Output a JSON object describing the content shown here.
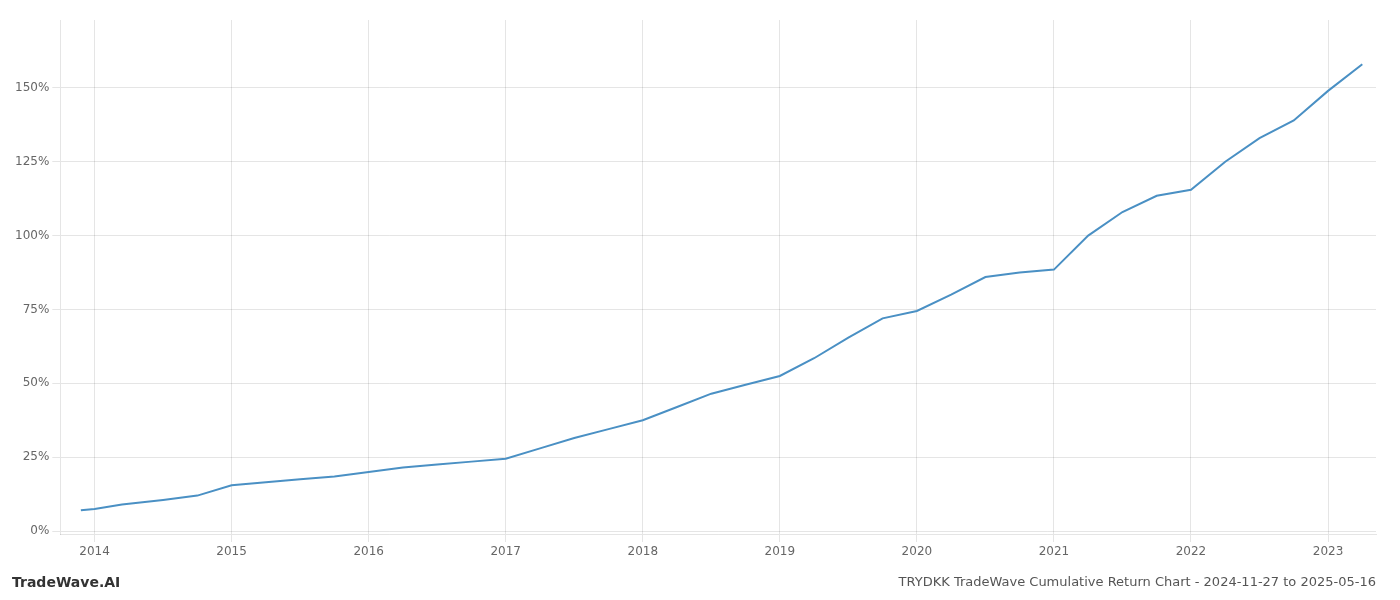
{
  "chart_data": {
    "type": "line",
    "title": "TRYDKK TradeWave Cumulative Return Chart - 2024-11-27 to 2025-05-16",
    "annotations": [
      "TradeWave.AI"
    ],
    "x": [
      2013.9,
      2014.0,
      2014.2,
      2014.5,
      2014.75,
      2015.0,
      2015.25,
      2015.5,
      2015.75,
      2016.0,
      2016.25,
      2016.5,
      2016.75,
      2017.0,
      2017.25,
      2017.5,
      2017.75,
      2018.0,
      2018.25,
      2018.5,
      2018.75,
      2019.0,
      2019.25,
      2019.5,
      2019.75,
      2020.0,
      2020.25,
      2020.5,
      2020.75,
      2021.0,
      2021.25,
      2021.5,
      2021.75,
      2022.0,
      2022.25,
      2022.5,
      2022.75,
      2023.0,
      2023.25
    ],
    "values": [
      0.07,
      0.075,
      0.09,
      0.105,
      0.12,
      0.155,
      0.165,
      0.175,
      0.185,
      0.2,
      0.215,
      0.225,
      0.235,
      0.245,
      0.28,
      0.315,
      0.345,
      0.375,
      0.42,
      0.465,
      0.495,
      0.525,
      0.585,
      0.655,
      0.72,
      0.745,
      0.8,
      0.86,
      0.875,
      0.885,
      1.0,
      1.08,
      1.135,
      1.155,
      1.25,
      1.33,
      1.39,
      1.49,
      1.58
    ],
    "color": "#4a90c4",
    "xlim": [
      2013.75,
      2023.35
    ],
    "ylim": [
      -0.01,
      1.73
    ],
    "xticks": [
      2014,
      2015,
      2016,
      2017,
      2018,
      2019,
      2020,
      2021,
      2022,
      2023
    ],
    "yticks": [
      {
        "value": 0.0,
        "label": "0%"
      },
      {
        "value": 0.25,
        "label": "25%"
      },
      {
        "value": 0.5,
        "label": "50%"
      },
      {
        "value": 0.75,
        "label": "75%"
      },
      {
        "value": 1.0,
        "label": "100%"
      },
      {
        "value": 1.25,
        "label": "125%"
      },
      {
        "value": 1.5,
        "label": "150%"
      }
    ],
    "grid": true
  }
}
